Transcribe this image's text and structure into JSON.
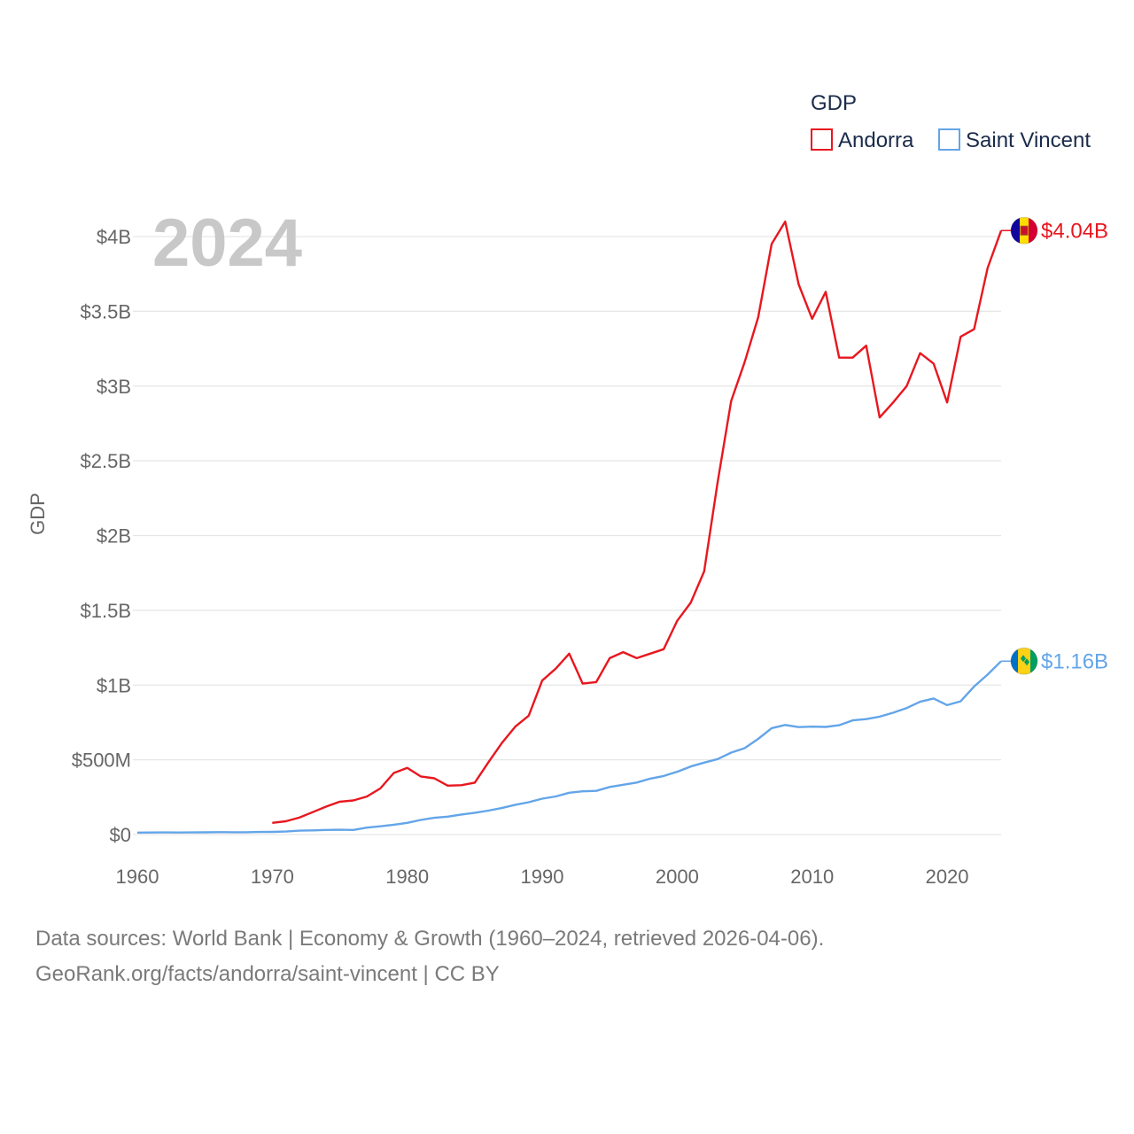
{
  "chart_data": {
    "type": "line",
    "title": "",
    "legend_title": "GDP",
    "ylabel": "GDP",
    "xlabel": "",
    "year_label": "2024",
    "xlim": [
      1960,
      2024
    ],
    "ylim": [
      0,
      4300000000
    ],
    "x_ticks": [
      1960,
      1970,
      1980,
      1990,
      2000,
      2010,
      2020
    ],
    "y_ticks": [
      {
        "value": 0,
        "label": "$0"
      },
      {
        "value": 500000000,
        "label": "$500M"
      },
      {
        "value": 1000000000,
        "label": "$1B"
      },
      {
        "value": 1500000000,
        "label": "$1.5B"
      },
      {
        "value": 2000000000,
        "label": "$2B"
      },
      {
        "value": 2500000000,
        "label": "$2.5B"
      },
      {
        "value": 3000000000,
        "label": "$3B"
      },
      {
        "value": 3500000000,
        "label": "$3.5B"
      },
      {
        "value": 4000000000,
        "label": "$4B"
      }
    ],
    "grid": true,
    "legend_position": "top-right",
    "series": [
      {
        "name": "Andorra",
        "color": "#e8171f",
        "end_label": "$4.04B",
        "flag": "andorra-flag",
        "x": [
          1970,
          1971,
          1972,
          1973,
          1974,
          1975,
          1976,
          1977,
          1978,
          1979,
          1980,
          1981,
          1982,
          1983,
          1984,
          1985,
          1986,
          1987,
          1988,
          1989,
          1990,
          1991,
          1992,
          1993,
          1994,
          1995,
          1996,
          1997,
          1998,
          1999,
          2000,
          2001,
          2002,
          2003,
          2004,
          2005,
          2006,
          2007,
          2008,
          2009,
          2010,
          2011,
          2012,
          2013,
          2014,
          2015,
          2016,
          2017,
          2018,
          2019,
          2020,
          2021,
          2022,
          2023,
          2024
        ],
        "values": [
          78000000,
          89000000,
          113000000,
          150000000,
          187000000,
          220000000,
          228000000,
          254000000,
          308000000,
          412000000,
          446000000,
          389000000,
          376000000,
          327000000,
          330000000,
          347000000,
          482000000,
          611000000,
          722000000,
          795000000,
          1030000000,
          1110000000,
          1210000000,
          1010000000,
          1020000000,
          1180000000,
          1220000000,
          1180000000,
          1210000000,
          1240000000,
          1430000000,
          1550000000,
          1760000000,
          2360000000,
          2900000000,
          3160000000,
          3460000000,
          3950000000,
          4100000000,
          3680000000,
          3450000000,
          3630000000,
          3190000000,
          3190000000,
          3270000000,
          2790000000,
          2890000000,
          3000000000,
          3220000000,
          3150000000,
          2890000000,
          3330000000,
          3380000000,
          3790000000,
          4040000000
        ]
      },
      {
        "name": "Saint Vincent",
        "color": "#63a5e8",
        "end_label": "$1.16B",
        "flag": "saint-vincent-flag",
        "x": [
          1960,
          1961,
          1962,
          1963,
          1964,
          1965,
          1966,
          1967,
          1968,
          1969,
          1970,
          1971,
          1972,
          1973,
          1974,
          1975,
          1976,
          1977,
          1978,
          1979,
          1980,
          1981,
          1982,
          1983,
          1984,
          1985,
          1986,
          1987,
          1988,
          1989,
          1990,
          1991,
          1992,
          1993,
          1994,
          1995,
          1996,
          1997,
          1998,
          1999,
          2000,
          2001,
          2002,
          2003,
          2004,
          2005,
          2006,
          2007,
          2008,
          2009,
          2010,
          2011,
          2012,
          2013,
          2014,
          2015,
          2016,
          2017,
          2018,
          2019,
          2020,
          2021,
          2022,
          2023,
          2024
        ],
        "values": [
          13000000,
          13500000,
          14000000,
          13500000,
          14000000,
          15000000,
          16000000,
          15500000,
          15500000,
          17000000,
          18000000,
          20000000,
          26000000,
          28000000,
          31000000,
          32000000,
          31000000,
          46000000,
          55000000,
          66000000,
          78000000,
          98000000,
          112000000,
          120000000,
          134000000,
          146000000,
          160000000,
          177000000,
          199000000,
          216000000,
          240000000,
          255000000,
          280000000,
          289000000,
          292000000,
          318000000,
          333000000,
          348000000,
          374000000,
          392000000,
          420000000,
          455000000,
          481000000,
          505000000,
          548000000,
          578000000,
          640000000,
          712000000,
          733000000,
          719000000,
          722000000,
          720000000,
          731000000,
          764000000,
          772000000,
          789000000,
          815000000,
          846000000,
          888000000,
          910000000,
          866000000,
          891000000,
          990000000,
          1070000000,
          1160000000
        ]
      }
    ]
  },
  "footer": {
    "line1": "Data sources: World Bank | Economy & Growth (1960–2024, retrieved 2026-04-06).",
    "line2": "GeoRank.org/facts/andorra/saint-vincent | CC BY"
  }
}
